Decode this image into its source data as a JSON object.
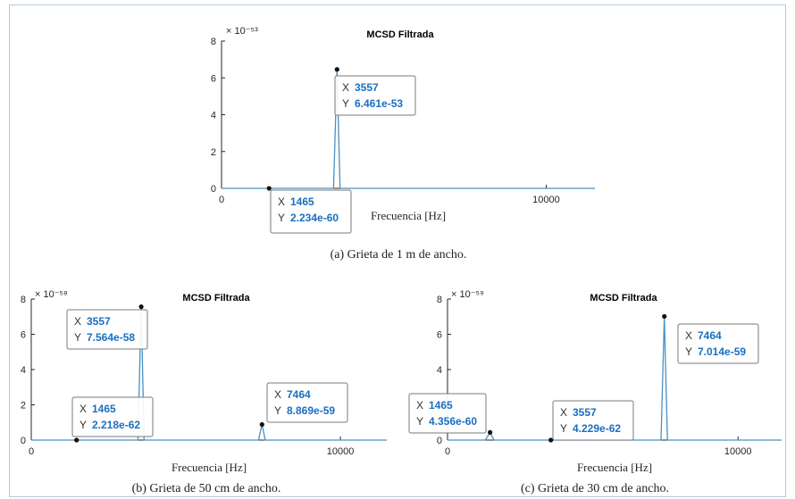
{
  "colors": {
    "line": "#4a90c4",
    "axis": "#262626",
    "datatip_border": "#7a7a7a",
    "datatip_value": "#1a6fc0",
    "frame": "#b4c8dc"
  },
  "chart_data": [
    {
      "type": "line",
      "title": "MCSD Filtrada",
      "xlabel": "Frecuencia [Hz]",
      "ylabel": "",
      "exponent_label": "× 10⁻⁵³",
      "xlim": [
        0,
        11500
      ],
      "ylim": [
        0,
        8
      ],
      "xticks": [
        0,
        10000
      ],
      "yticks": [
        0,
        2,
        4,
        6,
        8
      ],
      "series": [
        {
          "x": [
            0,
            3450,
            3557,
            3650,
            11500
          ],
          "y": [
            0,
            0,
            6.461,
            0,
            0
          ]
        }
      ],
      "datatips": [
        {
          "x_label": "X",
          "x_value": "1465",
          "y_label": "Y",
          "y_value": "2.234e-60",
          "x": 1465,
          "y": 0
        },
        {
          "x_label": "X",
          "x_value": "3557",
          "y_label": "Y",
          "y_value": "6.461e-53",
          "x": 3557,
          "y": 6.461
        }
      ],
      "caption": "(a) Grieta de 1 m de ancho."
    },
    {
      "type": "line",
      "title": "MCSD Filtrada",
      "xlabel": "Frecuencia [Hz]",
      "ylabel": "",
      "exponent_label": "× 10⁻⁵⁸",
      "xlim": [
        0,
        11500
      ],
      "ylim": [
        0,
        8
      ],
      "xticks": [
        0,
        10000
      ],
      "yticks": [
        0,
        2,
        4,
        6,
        8
      ],
      "series": [
        {
          "x": [
            0,
            3450,
            3557,
            3650,
            7350,
            7464,
            7570,
            11500
          ],
          "y": [
            0,
            0,
            7.564,
            0,
            0,
            0.8869,
            0,
            0
          ]
        }
      ],
      "datatips": [
        {
          "x_label": "X",
          "x_value": "3557",
          "y_label": "Y",
          "y_value": "7.564e-58",
          "x": 3557,
          "y": 7.564
        },
        {
          "x_label": "X",
          "x_value": "1465",
          "y_label": "Y",
          "y_value": "2.218e-62",
          "x": 1465,
          "y": 0
        },
        {
          "x_label": "X",
          "x_value": "7464",
          "y_label": "Y",
          "y_value": "8.869e-59",
          "x": 7464,
          "y": 0.8869
        }
      ],
      "caption": "(b) Grieta de 50 cm de ancho."
    },
    {
      "type": "line",
      "title": "MCSD Filtrada",
      "xlabel": "Frecuencia [Hz]",
      "ylabel": "",
      "exponent_label": "× 10⁻⁵⁹",
      "xlim": [
        0,
        11500
      ],
      "ylim": [
        0,
        8
      ],
      "xticks": [
        0,
        10000
      ],
      "yticks": [
        0,
        2,
        4,
        6,
        8
      ],
      "series": [
        {
          "x": [
            0,
            1300,
            1465,
            1600,
            3557,
            7350,
            7464,
            7570,
            11500
          ],
          "y": [
            0,
            0,
            0.4356,
            0,
            0,
            0,
            7.014,
            0,
            0
          ]
        }
      ],
      "datatips": [
        {
          "x_label": "X",
          "x_value": "1465",
          "y_label": "Y",
          "y_value": "4.356e-60",
          "x": 1465,
          "y": 0.4356
        },
        {
          "x_label": "X",
          "x_value": "3557",
          "y_label": "Y",
          "y_value": "4.229e-62",
          "x": 3557,
          "y": 0
        },
        {
          "x_label": "X",
          "x_value": "7464",
          "y_label": "Y",
          "y_value": "7.014e-59",
          "x": 7464,
          "y": 7.014
        }
      ],
      "caption": "(c) Grieta de 30 cm de ancho."
    }
  ]
}
